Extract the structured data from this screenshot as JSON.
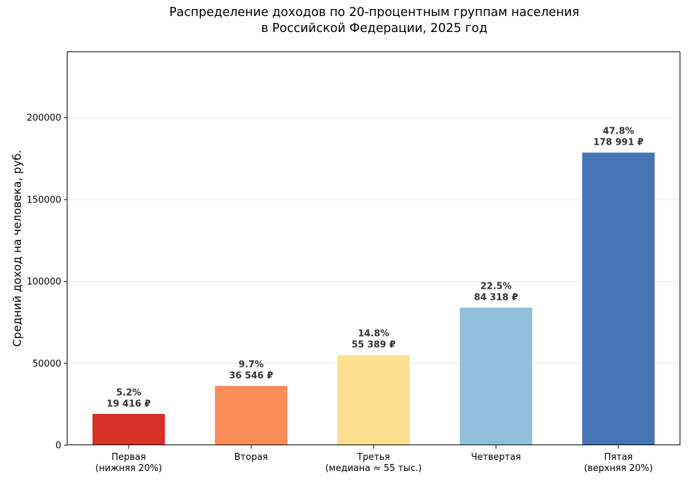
{
  "chart_data": {
    "type": "bar",
    "title_lines": [
      "Распределение доходов по 20-процентным группам населения",
      "в Российской Федерации, 2025 год"
    ],
    "xlabel": "",
    "ylabel": "Средний доход на человека, руб.",
    "ylim": [
      0,
      240000
    ],
    "yticks": [
      0,
      50000,
      100000,
      150000,
      200000
    ],
    "grid": "horizontal",
    "categories": [
      [
        "Первая",
        "(нижняя 20%)"
      ],
      [
        "Вторая"
      ],
      [
        "Третья",
        "(медиана ≈ 55 тыс.)"
      ],
      [
        "Четвертая"
      ],
      [
        "Пятая",
        "(верхняя 20%)"
      ]
    ],
    "values": [
      19416,
      36546,
      55389,
      84318,
      178991
    ],
    "shares": [
      "5.2%",
      "9.7%",
      "14.8%",
      "22.5%",
      "47.8%"
    ],
    "value_labels": [
      "19 416 ₽",
      "36 546 ₽",
      "55 389 ₽",
      "84 318 ₽",
      "178 991 ₽"
    ],
    "colors": [
      "#d73027",
      "#fc8d59",
      "#fee090",
      "#91bfdb",
      "#4575b4"
    ]
  }
}
